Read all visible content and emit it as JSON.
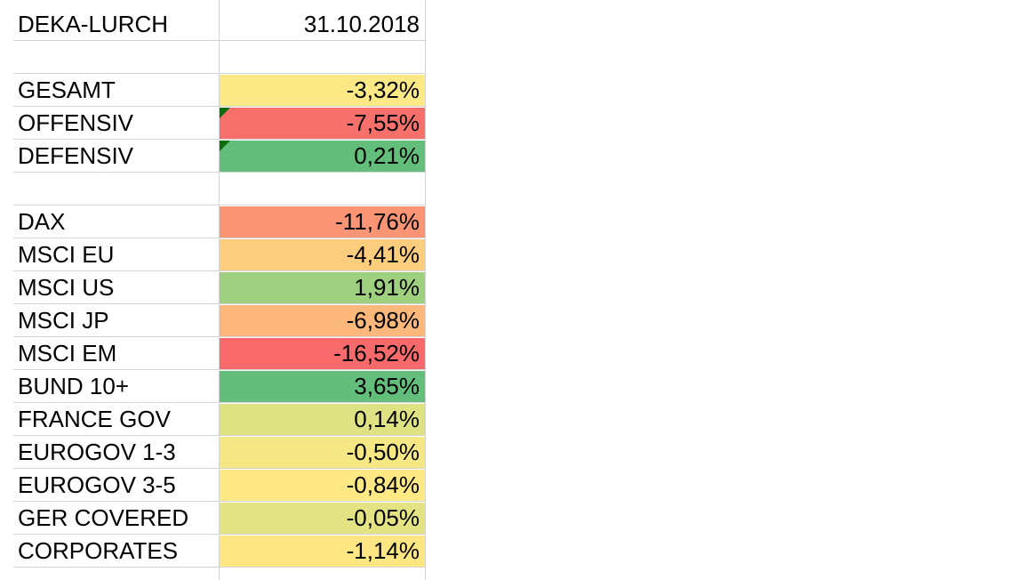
{
  "header": {
    "name": "DEKA-LURCH",
    "date": "31.10.2018"
  },
  "summary": [
    {
      "label": "GESAMT",
      "value": "-3,32%",
      "color": "#fde886",
      "comment": false
    },
    {
      "label": "OFFENSIV",
      "value": "-7,55%",
      "color": "#f8706c",
      "comment": true
    },
    {
      "label": "DEFENSIV",
      "value": "0,21%",
      "color": "#63be7b",
      "comment": true
    }
  ],
  "indices": [
    {
      "label": "DAX",
      "value": "-11,76%",
      "color": "#f99574"
    },
    {
      "label": "MSCI EU",
      "value": "-4,41%",
      "color": "#fdcd7e"
    },
    {
      "label": "MSCI US",
      "value": "1,91%",
      "color": "#9ed080"
    },
    {
      "label": "MSCI JP",
      "value": "-6,98%",
      "color": "#fcb87a"
    },
    {
      "label": "MSCI EM",
      "value": "-16,52%",
      "color": "#f8696b"
    },
    {
      "label": "BUND 10+",
      "value": "3,65%",
      "color": "#63be7b"
    },
    {
      "label": "FRANCE GOV",
      "value": "0,14%",
      "color": "#dfe283"
    },
    {
      "label": "EUROGOV 1-3",
      "value": "-0,50%",
      "color": "#f5e884"
    },
    {
      "label": "EUROGOV 3-5",
      "value": "-0,84%",
      "color": "#fee984"
    },
    {
      "label": "GER COVERED",
      "value": "-0,05%",
      "color": "#e4e383"
    },
    {
      "label": "CORPORATES",
      "value": "-1,14%",
      "color": "#fee783"
    }
  ]
}
